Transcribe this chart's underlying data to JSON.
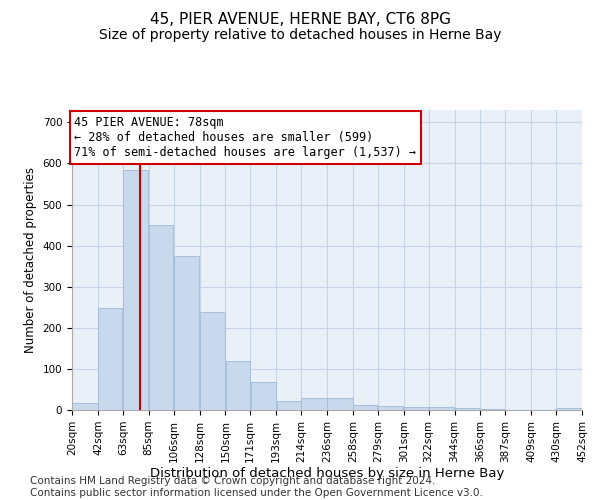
{
  "title": "45, PIER AVENUE, HERNE BAY, CT6 8PG",
  "subtitle": "Size of property relative to detached houses in Herne Bay",
  "xlabel": "Distribution of detached houses by size in Herne Bay",
  "ylabel": "Number of detached properties",
  "bar_color": "#c9d9ed",
  "bar_edgecolor": "#a8bfd8",
  "grid_color": "#c8d4e8",
  "background_color": "#eaf0f8",
  "property_line_x": 78,
  "property_line_color": "#cc0000",
  "annotation_text": "45 PIER AVENUE: 78sqm\n← 28% of detached houses are smaller (599)\n71% of semi-detached houses are larger (1,537) →",
  "annotation_box_color": "white",
  "annotation_box_edgecolor": "#cc0000",
  "bin_edges": [
    20,
    42,
    63,
    85,
    106,
    128,
    150,
    171,
    193,
    214,
    236,
    258,
    279,
    301,
    322,
    344,
    366,
    387,
    409,
    430,
    452
  ],
  "bar_heights": [
    16,
    247,
    585,
    449,
    375,
    238,
    120,
    68,
    22,
    28,
    30,
    12,
    10,
    8,
    7,
    4,
    2,
    1,
    0,
    5
  ],
  "ylim": [
    0,
    730
  ],
  "yticks": [
    0,
    100,
    200,
    300,
    400,
    500,
    600,
    700
  ],
  "footer_text": "Contains HM Land Registry data © Crown copyright and database right 2024.\nContains public sector information licensed under the Open Government Licence v3.0.",
  "footer_fontsize": 7.5,
  "title_fontsize": 11,
  "subtitle_fontsize": 10,
  "xlabel_fontsize": 9.5,
  "ylabel_fontsize": 8.5,
  "tick_fontsize": 7.5,
  "annotation_fontsize": 8.5
}
